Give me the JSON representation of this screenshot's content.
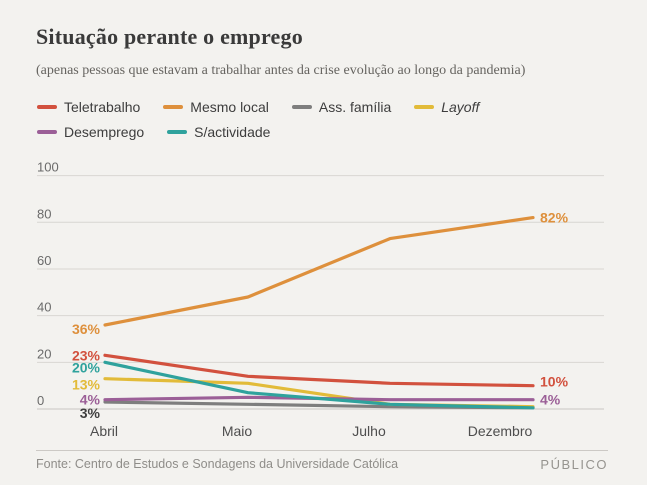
{
  "header": {
    "title": "Situação perante o emprego",
    "subtitle": "(apenas pessoas que estavam a trabalhar antes da crise evolução ao longo da pandemia)"
  },
  "footer": {
    "source": "Fonte: Centro de Estudos e Sondagens da Universidade Católica",
    "brand": "PÚBLICO"
  },
  "colors": {
    "background": "#f3f2ef",
    "gridline": "#d8d6d2",
    "teletrabalho": "#d2513e",
    "mesmo_local": "#de903c",
    "ass_familia": "#7e7e7e",
    "layoff": "#e2bb39",
    "desemprego": "#9b5f97",
    "s_actividade": "#2fa29d",
    "dark_label": "#3f3f3f"
  },
  "chart_data": {
    "type": "line",
    "title": "Situação perante o emprego",
    "categories": [
      "Abril",
      "Maio",
      "Julho",
      "Dezembro"
    ],
    "series": [
      {
        "name": "Teletrabalho",
        "color": "#d2513e",
        "italic": false,
        "values": [
          23,
          14,
          11,
          10
        ]
      },
      {
        "name": "Mesmo local",
        "color": "#de903c",
        "italic": false,
        "values": [
          36,
          48,
          73,
          82
        ]
      },
      {
        "name": "Ass. família",
        "color": "#7e7e7e",
        "italic": false,
        "values": [
          3,
          2,
          1,
          0.5
        ]
      },
      {
        "name": "Layoff",
        "color": "#e2bb39",
        "italic": true,
        "values": [
          13,
          11,
          2,
          1
        ]
      },
      {
        "name": "Desemprego",
        "color": "#9b5f97",
        "italic": false,
        "values": [
          4,
          5,
          4,
          4
        ]
      },
      {
        "name": "S/actividade",
        "color": "#2fa29d",
        "italic": false,
        "values": [
          20,
          7,
          2,
          0.5
        ]
      }
    ],
    "y_ticks": [
      0,
      20,
      40,
      60,
      80,
      100
    ],
    "ylim": [
      0,
      100
    ],
    "grid": true,
    "legend_position": "top",
    "annotations": [
      {
        "text": "36%",
        "side": "left",
        "value": 36,
        "color": "#de903c",
        "dy": 5
      },
      {
        "text": "23%",
        "side": "left",
        "value": 23,
        "color": "#d2513e",
        "dy": 1
      },
      {
        "text": "20%",
        "side": "left",
        "value": 20,
        "color": "#2fa29d",
        "dy": 6
      },
      {
        "text": "13%",
        "side": "left",
        "value": 13,
        "color": "#e2bb39",
        "dy": 7
      },
      {
        "text": "4%",
        "side": "left",
        "value": 4,
        "color": "#9b5f97",
        "dy": 1
      },
      {
        "text": "3%",
        "side": "left",
        "value": 3,
        "color": "#3f3f3f",
        "dy": 12
      },
      {
        "text": "82%",
        "side": "right",
        "value": 82,
        "color": "#de903c",
        "dy": 1
      },
      {
        "text": "10%",
        "side": "right",
        "value": 10,
        "color": "#d2513e",
        "dy": -3
      },
      {
        "text": "4%",
        "side": "right",
        "value": 4,
        "color": "#9b5f97",
        "dy": 1
      }
    ]
  }
}
